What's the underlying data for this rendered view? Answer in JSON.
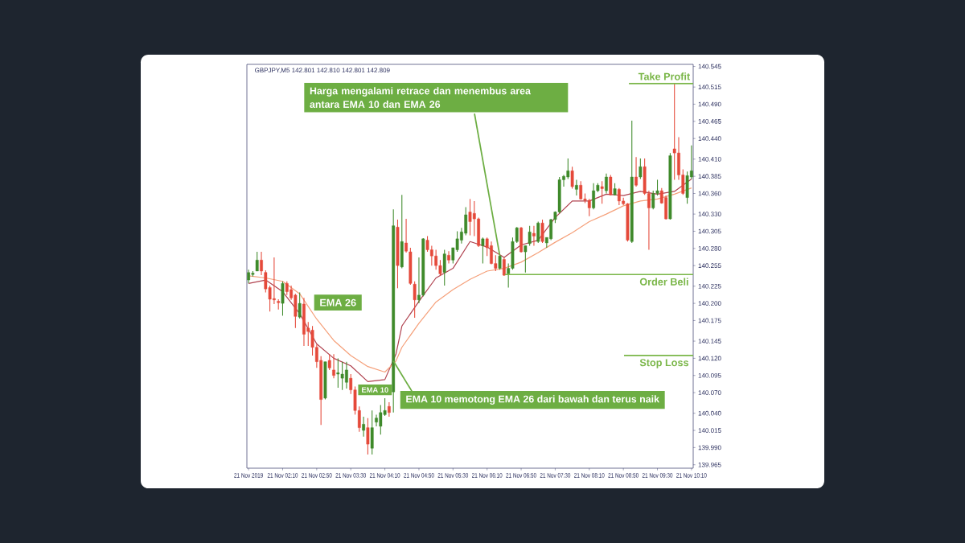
{
  "chart_data": {
    "type": "candlestick",
    "annotations": [
      "GBPJPY,M5  142.801 142.810 142.801 142.809",
      {
        "text": "Harga mengalami retrace dan menembus area antara EMA 10 dan EMA 26",
        "x": "2019-11-21T06:25",
        "y": 140.269
      },
      {
        "text": "EMA 10 memotong EMA 26 dari bawah dan terus naik",
        "x": "2019-11-21T04:20",
        "y": 140.116
      }
    ],
    "colors": [
      "#3f8a2b",
      "#3f8a2b",
      "#3f8a2b",
      "#e5493a",
      "#e5493a",
      "#e5493a",
      "#e5493a",
      "#e5493a",
      "#3f8a2b",
      "#e5493a",
      "#e5493a",
      "#e5493a",
      "#3f8a2b",
      "#e5493a",
      "#e5493a",
      "#e5493a",
      "#e5493a",
      "#e5493a",
      "#3f8a2b",
      "#e5493a",
      "#e5493a",
      "#3f8a2b",
      "#3f8a2b",
      "#3f8a2b",
      "#e5493a",
      "#e5493a",
      "#e5493a",
      "#3f8a2b",
      "#e5493a",
      "#3f8a2b",
      "#3f8a2b",
      "#3f8a2b",
      "#3f8a2b",
      "#e5493a",
      "#3f8a2b",
      "#e5493a",
      "#3f8a2b",
      "#e5493a",
      "#e5493a",
      "#e5493a",
      "#3f8a2b",
      "#3f8a2b",
      "#e5493a",
      "#e5493a",
      "#e5493a",
      "#e5493a",
      "#3f8a2b",
      "#e5493a",
      "#3f8a2b",
      "#3f8a2b",
      "#3f8a2b",
      "#3f8a2b",
      "#e5493a",
      "#e5493a",
      "#e5493a",
      "#3f8a2b",
      "#e5493a",
      "#e5493a",
      "#e5493a",
      "#3f8a2b",
      "#e5493a",
      "#3f8a2b",
      "#3f8a2b",
      "#3f8a2b",
      "#e5493a",
      "#3f8a2b",
      "#3f8a2b",
      "#e5493a",
      "#3f8a2b",
      "#e5493a",
      "#3f8a2b",
      "#3f8a2b",
      "#3f8a2b",
      "#3f8a2b",
      "#3f8a2b",
      "#3f8a2b",
      "#e5493a",
      "#3f8a2b",
      "#e5493a",
      "#e5493a",
      "#e5493a",
      "#3f8a2b",
      "#3f8a2b",
      "#e5493a",
      "#3f8a2b",
      "#e5493a",
      "#3f8a2b",
      "#e5493a",
      "#e5493a",
      "#e5493a",
      "#3f8a2b",
      "#e5493a",
      "#3f8a2b",
      "#e5493a",
      "#e5493a",
      "#3f8a2b",
      "#3f8a2b",
      "#e5493a",
      "#e5493a",
      "#3f8a2b",
      "#e5493a",
      "#e5493a",
      "#e5493a",
      "#3f8a2b",
      "#3f8a2b"
    ],
    "x": [
      "2019-11-21T01:30",
      "2019-11-21T01:35",
      "2019-11-21T01:40",
      "2019-11-21T01:45",
      "2019-11-21T01:50",
      "2019-11-21T01:55",
      "2019-11-21T02:00",
      "2019-11-21T02:05",
      "2019-11-21T02:10",
      "2019-11-21T02:15",
      "2019-11-21T02:20",
      "2019-11-21T02:25",
      "2019-11-21T02:30",
      "2019-11-21T02:35",
      "2019-11-21T02:40",
      "2019-11-21T02:45",
      "2019-11-21T02:50",
      "2019-11-21T02:55",
      "2019-11-21T03:00",
      "2019-11-21T03:05",
      "2019-11-21T03:10",
      "2019-11-21T03:15",
      "2019-11-21T03:20",
      "2019-11-21T03:25",
      "2019-11-21T03:30",
      "2019-11-21T03:35",
      "2019-11-21T03:40",
      "2019-11-21T03:45",
      "2019-11-21T03:50",
      "2019-11-21T03:55",
      "2019-11-21T04:00",
      "2019-11-21T04:05",
      "2019-11-21T04:10",
      "2019-11-21T04:15",
      "2019-11-21T04:20",
      "2019-11-21T04:25",
      "2019-11-21T04:30",
      "2019-11-21T04:35",
      "2019-11-21T04:40",
      "2019-11-21T04:45",
      "2019-11-21T04:50",
      "2019-11-21T04:55",
      "2019-11-21T05:00",
      "2019-11-21T05:05",
      "2019-11-21T05:10",
      "2019-11-21T05:15",
      "2019-11-21T05:20",
      "2019-11-21T05:25",
      "2019-11-21T05:30",
      "2019-11-21T05:35",
      "2019-11-21T05:40",
      "2019-11-21T05:45",
      "2019-11-21T05:50",
      "2019-11-21T05:55",
      "2019-11-21T06:00",
      "2019-11-21T06:05",
      "2019-11-21T06:10",
      "2019-11-21T06:15",
      "2019-11-21T06:20",
      "2019-11-21T06:25",
      "2019-11-21T06:30",
      "2019-11-21T06:35",
      "2019-11-21T06:40",
      "2019-11-21T06:45",
      "2019-11-21T06:50",
      "2019-11-21T06:55",
      "2019-11-21T07:00",
      "2019-11-21T07:05",
      "2019-11-21T07:10",
      "2019-11-21T07:15",
      "2019-11-21T07:20",
      "2019-11-21T07:25",
      "2019-11-21T07:30",
      "2019-11-21T07:35",
      "2019-11-21T07:40",
      "2019-11-21T07:45",
      "2019-11-21T07:50",
      "2019-11-21T07:55",
      "2019-11-21T08:00",
      "2019-11-21T08:05",
      "2019-11-21T08:10",
      "2019-11-21T08:15",
      "2019-11-21T08:20",
      "2019-11-21T08:25",
      "2019-11-21T08:30",
      "2019-11-21T08:35",
      "2019-11-21T08:40",
      "2019-11-21T08:45",
      "2019-11-21T08:50",
      "2019-11-21T08:55",
      "2019-11-21T09:00",
      "2019-11-21T09:05",
      "2019-11-21T09:10",
      "2019-11-21T09:15",
      "2019-11-21T09:20",
      "2019-11-21T09:25",
      "2019-11-21T09:30",
      "2019-11-21T09:35",
      "2019-11-21T09:40",
      "2019-11-21T09:45",
      "2019-11-21T09:50",
      "2019-11-21T09:55",
      "2019-11-21T10:00",
      "2019-11-21T10:05",
      "2019-11-21T10:10"
    ],
    "ohlc": [
      [
        140.234,
        140.249,
        140.229,
        140.245
      ],
      [
        140.242,
        140.247,
        140.239,
        140.244
      ],
      [
        140.247,
        140.275,
        140.247,
        140.263
      ],
      [
        140.263,
        140.275,
        140.241,
        140.247
      ],
      [
        140.245,
        140.248,
        140.216,
        140.221
      ],
      [
        140.223,
        140.226,
        140.188,
        140.206
      ],
      [
        140.207,
        140.267,
        140.199,
        140.205
      ],
      [
        140.203,
        140.206,
        140.191,
        140.201
      ],
      [
        140.2,
        140.232,
        140.182,
        140.229
      ],
      [
        140.229,
        140.232,
        140.212,
        140.217
      ],
      [
        140.22,
        140.226,
        140.205,
        140.208
      ],
      [
        140.212,
        140.214,
        140.164,
        140.181
      ],
      [
        140.18,
        140.216,
        140.178,
        140.2
      ],
      [
        140.199,
        140.208,
        140.138,
        140.155
      ],
      [
        140.164,
        140.173,
        140.138,
        140.159
      ],
      [
        140.161,
        140.167,
        140.124,
        140.136
      ],
      [
        140.136,
        140.14,
        140.106,
        140.115
      ],
      [
        140.117,
        140.123,
        140.023,
        140.06
      ],
      [
        140.062,
        140.115,
        140.06,
        140.115
      ],
      [
        140.117,
        140.126,
        140.103,
        140.106
      ],
      [
        140.103,
        140.126,
        140.091,
        140.095
      ],
      [
        140.097,
        140.12,
        140.077,
        140.099
      ],
      [
        140.091,
        140.115,
        140.074,
        140.097
      ],
      [
        140.085,
        140.115,
        140.076,
        140.103
      ],
      [
        140.091,
        140.097,
        140.068,
        140.074
      ],
      [
        140.074,
        140.079,
        140.038,
        140.044
      ],
      [
        140.044,
        140.05,
        140.013,
        140.019
      ],
      [
        140.015,
        140.035,
        140.006,
        140.024
      ],
      [
        140.019,
        140.033,
        139.98,
        139.995
      ],
      [
        139.989,
        140.044,
        139.98,
        140.019
      ],
      [
        140.027,
        140.038,
        140.021,
        140.033
      ],
      [
        140.021,
        140.052,
        140.009,
        140.041
      ],
      [
        140.038,
        140.062,
        140.036,
        140.044
      ],
      [
        140.05,
        140.056,
        140.035,
        140.041
      ],
      [
        140.071,
        140.337,
        140.041,
        140.313
      ],
      [
        140.311,
        140.322,
        140.222,
        140.255
      ],
      [
        140.253,
        140.358,
        140.251,
        140.29
      ],
      [
        140.288,
        140.323,
        140.274,
        140.276
      ],
      [
        140.275,
        140.281,
        140.227,
        140.229
      ],
      [
        140.228,
        140.232,
        140.179,
        140.205
      ],
      [
        140.205,
        140.267,
        140.2,
        140.212
      ],
      [
        140.212,
        140.295,
        140.21,
        140.294
      ],
      [
        140.292,
        140.298,
        140.275,
        140.278
      ],
      [
        140.278,
        140.284,
        140.255,
        140.269
      ],
      [
        140.269,
        140.278,
        140.249,
        140.255
      ],
      [
        140.255,
        140.263,
        140.24,
        140.243
      ],
      [
        140.245,
        140.278,
        140.226,
        140.272
      ],
      [
        140.27,
        140.276,
        140.258,
        140.263
      ],
      [
        140.263,
        140.281,
        140.258,
        140.281
      ],
      [
        140.278,
        140.305,
        140.275,
        140.294
      ],
      [
        140.292,
        140.31,
        140.287,
        140.304
      ],
      [
        140.302,
        140.34,
        140.299,
        140.329
      ],
      [
        140.333,
        140.352,
        140.299,
        140.319
      ],
      [
        140.331,
        140.349,
        140.298,
        140.323
      ],
      [
        140.323,
        140.325,
        140.282,
        140.284
      ],
      [
        140.284,
        140.296,
        140.258,
        140.294
      ],
      [
        140.294,
        140.296,
        140.269,
        140.281
      ],
      [
        140.284,
        140.29,
        140.257,
        140.258
      ],
      [
        140.258,
        140.27,
        140.247,
        140.251
      ],
      [
        140.251,
        140.27,
        140.249,
        140.269
      ],
      [
        140.264,
        140.267,
        140.24,
        140.241
      ],
      [
        140.243,
        140.258,
        140.223,
        140.251
      ],
      [
        140.251,
        140.296,
        140.249,
        140.29
      ],
      [
        140.29,
        140.311,
        140.288,
        140.31
      ],
      [
        140.31,
        140.311,
        140.274,
        140.275
      ],
      [
        140.275,
        140.284,
        140.245,
        140.284
      ],
      [
        140.287,
        140.313,
        140.284,
        140.304
      ],
      [
        140.302,
        140.313,
        140.284,
        140.298
      ],
      [
        140.29,
        140.319,
        140.288,
        140.317
      ],
      [
        140.317,
        140.322,
        140.288,
        140.29
      ],
      [
        140.288,
        140.296,
        140.281,
        140.296
      ],
      [
        140.294,
        140.323,
        140.292,
        140.322
      ],
      [
        140.322,
        140.334,
        140.317,
        140.333
      ],
      [
        140.333,
        140.384,
        140.331,
        140.38
      ],
      [
        140.38,
        140.387,
        140.37,
        140.385
      ],
      [
        140.384,
        140.411,
        140.381,
        140.393
      ],
      [
        140.393,
        140.399,
        140.367,
        140.37
      ],
      [
        140.366,
        140.38,
        140.357,
        140.372
      ],
      [
        140.372,
        140.378,
        140.351,
        140.352
      ],
      [
        140.352,
        140.36,
        140.346,
        140.35
      ],
      [
        140.35,
        140.352,
        140.327,
        140.339
      ],
      [
        140.339,
        140.375,
        140.337,
        140.364
      ],
      [
        140.364,
        140.375,
        140.362,
        140.372
      ],
      [
        140.37,
        140.378,
        140.345,
        140.367
      ],
      [
        140.364,
        140.389,
        140.36,
        140.384
      ],
      [
        140.384,
        140.387,
        140.357,
        140.358
      ],
      [
        140.358,
        140.375,
        140.357,
        140.367
      ],
      [
        140.366,
        140.368,
        140.343,
        140.349
      ],
      [
        140.349,
        140.354,
        140.343,
        140.345
      ],
      [
        140.345,
        140.346,
        140.29,
        140.292
      ],
      [
        140.29,
        140.466,
        140.288,
        140.384
      ],
      [
        140.384,
        140.413,
        140.37,
        140.372
      ],
      [
        140.384,
        140.411,
        140.381,
        140.399
      ],
      [
        140.399,
        140.411,
        140.358,
        140.36
      ],
      [
        140.36,
        140.364,
        140.278,
        140.339
      ],
      [
        140.339,
        140.364,
        140.337,
        140.36
      ],
      [
        140.36,
        140.38,
        140.357,
        140.364
      ],
      [
        140.364,
        140.368,
        140.345,
        140.346
      ],
      [
        140.354,
        140.357,
        140.322,
        140.323
      ],
      [
        140.323,
        140.419,
        140.322,
        140.415
      ],
      [
        140.425,
        140.521,
        140.38,
        140.419
      ],
      [
        140.419,
        140.442,
        140.38,
        140.387
      ],
      [
        140.387,
        140.395,
        140.358,
        140.36
      ],
      [
        140.354,
        140.392,
        140.345,
        140.386
      ],
      [
        140.384,
        140.43,
        140.381,
        140.393
      ]
    ],
    "series": [
      {
        "name": "EMA 10",
        "type": "line",
        "color": "#b0424f",
        "x": [
          "2019-11-21T01:30",
          "2019-11-21T01:50",
          "2019-11-21T02:10",
          "2019-11-21T02:30",
          "2019-11-21T02:50",
          "2019-11-21T03:10",
          "2019-11-21T03:30",
          "2019-11-21T03:50",
          "2019-11-21T04:10",
          "2019-11-21T04:23",
          "2019-11-21T04:30",
          "2019-11-21T04:50",
          "2019-11-21T05:10",
          "2019-11-21T05:30",
          "2019-11-21T05:50",
          "2019-11-21T06:10",
          "2019-11-21T06:30",
          "2019-11-21T06:50",
          "2019-11-21T07:10",
          "2019-11-21T07:30",
          "2019-11-21T07:50",
          "2019-11-21T08:10",
          "2019-11-21T08:30",
          "2019-11-21T08:50",
          "2019-11-21T09:10",
          "2019-11-21T09:30",
          "2019-11-21T09:50",
          "2019-11-21T10:10"
        ],
        "values": [
          140.229,
          140.234,
          140.217,
          140.185,
          140.141,
          140.12,
          140.109,
          140.086,
          140.089,
          140.126,
          140.167,
          140.203,
          140.237,
          140.251,
          140.29,
          140.282,
          140.267,
          140.285,
          140.292,
          140.325,
          140.349,
          140.349,
          140.359,
          140.357,
          140.363,
          140.359,
          140.363,
          140.381
        ]
      },
      {
        "name": "EMA 26",
        "type": "line",
        "color": "#f5a07a",
        "x": [
          "2019-11-21T01:30",
          "2019-11-21T01:50",
          "2019-11-21T02:10",
          "2019-11-21T02:30",
          "2019-11-21T02:50",
          "2019-11-21T03:10",
          "2019-11-21T03:30",
          "2019-11-21T03:50",
          "2019-11-21T04:10",
          "2019-11-21T04:23",
          "2019-11-21T04:30",
          "2019-11-21T04:50",
          "2019-11-21T05:10",
          "2019-11-21T05:30",
          "2019-11-21T05:50",
          "2019-11-21T06:10",
          "2019-11-21T06:30",
          "2019-11-21T06:50",
          "2019-11-21T07:10",
          "2019-11-21T07:30",
          "2019-11-21T07:50",
          "2019-11-21T08:10",
          "2019-11-21T08:30",
          "2019-11-21T08:50",
          "2019-11-21T09:10",
          "2019-11-21T09:30",
          "2019-11-21T09:50",
          "2019-11-21T10:10"
        ],
        "values": [
          140.24,
          140.237,
          140.232,
          140.214,
          140.177,
          140.146,
          140.124,
          140.108,
          140.1,
          140.116,
          140.136,
          140.171,
          140.202,
          140.22,
          140.235,
          140.247,
          140.251,
          140.26,
          140.274,
          140.289,
          140.303,
          140.319,
          140.33,
          140.342,
          140.349,
          140.352,
          140.359,
          140.368
        ]
      }
    ],
    "ref_lines": [
      {
        "axis": "y",
        "value": 140.52,
        "label": "Take Profit",
        "color": "#7ab648"
      },
      {
        "axis": "y",
        "value": 140.242,
        "label": "Order Beli",
        "color": "#7ab648"
      },
      {
        "axis": "y",
        "value": 140.124,
        "label": "Stop Loss",
        "color": "#7ab648"
      }
    ],
    "xlim": [
      "2019-11-21T01:28",
      "2019-11-21T10:12"
    ],
    "xticks": [
      {
        "value": "2019-11-21T01:30",
        "label": "21 Nov 2019"
      },
      {
        "value": "2019-11-21T02:10",
        "label": "21 Nov 02:10"
      },
      {
        "value": "2019-11-21T02:50",
        "label": "21 Nov 02:50"
      },
      {
        "value": "2019-11-21T03:30",
        "label": "21 Nov 03:30"
      },
      {
        "value": "2019-11-21T04:10",
        "label": "21 Nov 04:10"
      },
      {
        "value": "2019-11-21T04:50",
        "label": "21 Nov 04:50"
      },
      {
        "value": "2019-11-21T05:30",
        "label": "21 Nov 05:30"
      },
      {
        "value": "2019-11-21T06:10",
        "label": "21 Nov 06:10"
      },
      {
        "value": "2019-11-21T06:50",
        "label": "21 Nov 06:50"
      },
      {
        "value": "2019-11-21T07:30",
        "label": "21 Nov 07:30"
      },
      {
        "value": "2019-11-21T08:10",
        "label": "21 Nov 08:10"
      },
      {
        "value": "2019-11-21T08:50",
        "label": "21 Nov 08:50"
      },
      {
        "value": "2019-11-21T09:30",
        "label": "21 Nov 09:30"
      },
      {
        "value": "2019-11-21T10:10",
        "label": "21 Nov 10:10"
      }
    ],
    "ylim": [
      139.96,
      140.548
    ],
    "yticks": [
      {
        "value": 139.965,
        "label": "139.965"
      },
      {
        "value": 139.99,
        "label": "139.990"
      },
      {
        "value": 140.015,
        "label": "140.015"
      },
      {
        "value": 140.04,
        "label": "140.040"
      },
      {
        "value": 140.07,
        "label": "140.070"
      },
      {
        "value": 140.095,
        "label": "140.095"
      },
      {
        "value": 140.12,
        "label": "140.120"
      },
      {
        "value": 140.145,
        "label": "140.145"
      },
      {
        "value": 140.175,
        "label": "140.175"
      },
      {
        "value": 140.2,
        "label": "140.200"
      },
      {
        "value": 140.225,
        "label": "140.225"
      },
      {
        "value": 140.255,
        "label": "140.255"
      },
      {
        "value": 140.28,
        "label": "140.280"
      },
      {
        "value": 140.305,
        "label": "140.305"
      },
      {
        "value": 140.33,
        "label": "140.330"
      },
      {
        "value": 140.36,
        "label": "140.360"
      },
      {
        "value": 140.385,
        "label": "140.385"
      },
      {
        "value": 140.41,
        "label": "140.410"
      },
      {
        "value": 140.44,
        "label": "140.440"
      },
      {
        "value": 140.465,
        "label": "140.465"
      },
      {
        "value": 140.49,
        "label": "140.490"
      },
      {
        "value": 140.515,
        "label": "140.515"
      },
      {
        "value": 140.545,
        "label": "140.545"
      }
    ]
  }
}
